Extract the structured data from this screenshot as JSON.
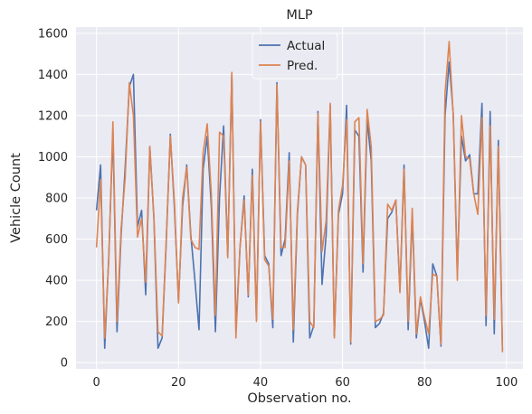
{
  "chart_data": {
    "type": "line",
    "title": "MLP",
    "xlabel": "Observation no.",
    "ylabel": "Vehicle Count",
    "xlim": [
      -5,
      104
    ],
    "ylim": [
      -30,
      1630
    ],
    "xticks": [
      0,
      20,
      40,
      60,
      80,
      100
    ],
    "yticks": [
      0,
      200,
      400,
      600,
      800,
      1000,
      1200,
      1400,
      1600
    ],
    "grid": true,
    "legend_position": "top-center",
    "x": [
      0,
      1,
      2,
      3,
      4,
      5,
      6,
      7,
      8,
      9,
      10,
      11,
      12,
      13,
      14,
      15,
      16,
      17,
      18,
      19,
      20,
      21,
      22,
      23,
      24,
      25,
      26,
      27,
      28,
      29,
      30,
      31,
      32,
      33,
      34,
      35,
      36,
      37,
      38,
      39,
      40,
      41,
      42,
      43,
      44,
      45,
      46,
      47,
      48,
      49,
      50,
      51,
      52,
      53,
      54,
      55,
      56,
      57,
      58,
      59,
      60,
      61,
      62,
      63,
      64,
      65,
      66,
      67,
      68,
      69,
      70,
      71,
      72,
      73,
      74,
      75,
      76,
      77,
      78,
      79,
      80,
      81,
      82,
      83,
      84,
      85,
      86,
      87,
      88,
      89,
      90,
      91,
      92,
      93,
      94,
      95,
      96,
      97,
      98,
      99
    ],
    "series": [
      {
        "name": "Actual",
        "color": "#4c72b0",
        "values": [
          740,
          960,
          70,
          520,
          1120,
          150,
          620,
          950,
          1340,
          1400,
          660,
          740,
          330,
          1050,
          700,
          70,
          120,
          580,
          1110,
          750,
          300,
          760,
          960,
          620,
          400,
          160,
          940,
          1100,
          760,
          150,
          800,
          1150,
          520,
          1400,
          160,
          560,
          810,
          320,
          940,
          210,
          1180,
          520,
          480,
          170,
          1360,
          520,
          600,
          1020,
          100,
          720,
          1000,
          960,
          120,
          180,
          1220,
          380,
          620,
          1250,
          130,
          720,
          820,
          1250,
          90,
          1130,
          1100,
          440,
          1180,
          980,
          170,
          190,
          240,
          700,
          730,
          790,
          350,
          960,
          160,
          720,
          120,
          310,
          200,
          70,
          480,
          420,
          80,
          1200,
          1460,
          1210,
          430,
          1100,
          980,
          1010,
          820,
          820,
          1260,
          180,
          1220,
          140,
          1080,
          60
        ]
      },
      {
        "name": "Pred.",
        "color": "#dd8452",
        "values": [
          560,
          890,
          120,
          500,
          1170,
          200,
          650,
          900,
          1360,
          1200,
          610,
          700,
          390,
          1050,
          710,
          150,
          130,
          600,
          1100,
          780,
          290,
          800,
          950,
          600,
          560,
          550,
          1020,
          1160,
          820,
          230,
          1120,
          1100,
          510,
          1410,
          120,
          560,
          790,
          330,
          910,
          200,
          1170,
          500,
          470,
          210,
          1350,
          560,
          560,
          980,
          160,
          740,
          1000,
          960,
          200,
          170,
          1210,
          540,
          690,
          1260,
          120,
          740,
          860,
          1180,
          100,
          1170,
          1190,
          480,
          1230,
          1050,
          200,
          210,
          230,
          770,
          740,
          790,
          340,
          940,
          200,
          750,
          140,
          320,
          220,
          140,
          430,
          420,
          90,
          1310,
          1560,
          1200,
          400,
          1200,
          1000,
          990,
          820,
          720,
          1190,
          230,
          1150,
          210,
          1050,
          50
        ]
      }
    ]
  }
}
